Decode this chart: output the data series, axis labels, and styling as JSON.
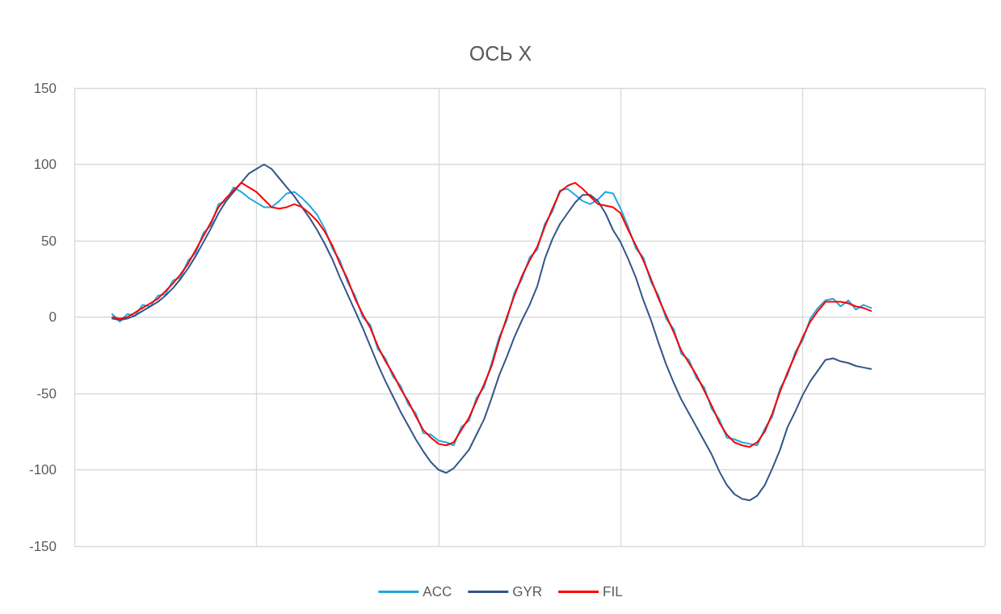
{
  "chart_data": {
    "type": "line",
    "title": "ОСЬ X",
    "categories": [
      null,
      null,
      null,
      null,
      null,
      null,
      null,
      null,
      null,
      null,
      null,
      null,
      null,
      null,
      null,
      null,
      null,
      null,
      null,
      null,
      null,
      null,
      null,
      null,
      null,
      null,
      null,
      null,
      null,
      null,
      null,
      null,
      null,
      null,
      null,
      null,
      null,
      null,
      null,
      null,
      null,
      null,
      null,
      null,
      null,
      null,
      null,
      null,
      null,
      null,
      null,
      null,
      null,
      null,
      null,
      null,
      null,
      null,
      null,
      null,
      null,
      null,
      null,
      null,
      null,
      null,
      null,
      null,
      null,
      null,
      null,
      null,
      null,
      null,
      null,
      null,
      null,
      null,
      null,
      null,
      null,
      null,
      null,
      null,
      null,
      null,
      null,
      null,
      null,
      null,
      null,
      null,
      null,
      null,
      null,
      null,
      null,
      null,
      null,
      null,
      null,
      null,
      null,
      null,
      null,
      null,
      null,
      null,
      null,
      null,
      null,
      null,
      null,
      null,
      null,
      null,
      null,
      null,
      null,
      null,
      null
    ],
    "series": [
      {
        "name": "ACC",
        "color": "#1fa8e0",
        "values": [
          null,
          null,
          null,
          null,
          null,
          2,
          -3,
          2,
          1,
          8,
          7,
          14,
          15,
          24,
          26,
          37,
          42,
          55,
          60,
          74,
          76,
          85,
          82,
          78,
          75,
          72,
          72,
          76,
          81,
          82,
          78,
          73,
          67,
          58,
          45,
          37,
          23,
          14,
          0,
          -5,
          -21,
          -27,
          -39,
          -45,
          -57,
          -63,
          -76,
          -77,
          -81,
          -82,
          -84,
          -72,
          -68,
          -53,
          -46,
          -30,
          -13,
          -2,
          16,
          25,
          39,
          44,
          61,
          69,
          83,
          84,
          80,
          76,
          74,
          77,
          82,
          81,
          71,
          59,
          45,
          39,
          23,
          14,
          -1,
          -8,
          -24,
          -28,
          -40,
          -46,
          -60,
          -67,
          -79,
          -80,
          -82,
          -83,
          -84,
          -73,
          -65,
          -47,
          -38,
          -23,
          -15,
          -1,
          6,
          11,
          12,
          7,
          11,
          5,
          8,
          6,
          null,
          null,
          null,
          null,
          null,
          null,
          null,
          null,
          null,
          null,
          null,
          null,
          null,
          null,
          null
        ]
      },
      {
        "name": "GYR",
        "color": "#34558b",
        "values": [
          null,
          null,
          null,
          null,
          null,
          -1,
          -2,
          -1,
          1,
          4,
          7,
          10,
          14,
          19,
          25,
          32,
          40,
          49,
          58,
          68,
          76,
          82,
          88,
          94,
          97,
          100,
          97,
          91,
          85,
          79,
          72,
          65,
          57,
          48,
          38,
          26,
          15,
          4,
          -7,
          -19,
          -31,
          -42,
          -52,
          -62,
          -71,
          -80,
          -88,
          -95,
          -100,
          -102,
          -99,
          -93,
          -87,
          -77,
          -67,
          -53,
          -38,
          -26,
          -13,
          -2,
          8,
          20,
          38,
          51,
          61,
          68,
          75,
          80,
          80,
          76,
          68,
          57,
          49,
          38,
          26,
          11,
          -2,
          -17,
          -31,
          -43,
          -54,
          -63,
          -72,
          -81,
          -90,
          -101,
          -110,
          -116,
          -119,
          -120,
          -117,
          -110,
          -99,
          -87,
          -72,
          -62,
          -51,
          -42,
          -35,
          -28,
          -27,
          -29,
          -30,
          -32,
          -33,
          -34,
          null,
          null,
          null,
          null,
          null,
          null,
          null,
          null,
          null,
          null,
          null,
          null,
          null,
          null,
          null
        ]
      },
      {
        "name": "FIL",
        "color": "#ff0000",
        "values": [
          null,
          null,
          null,
          null,
          null,
          0,
          -1,
          0,
          3,
          6,
          9,
          12,
          17,
          22,
          28,
          35,
          44,
          53,
          62,
          72,
          78,
          83,
          88,
          85,
          82,
          77,
          72,
          71,
          72,
          74,
          72,
          68,
          63,
          56,
          47,
          35,
          25,
          12,
          2,
          -7,
          -19,
          -29,
          -37,
          -47,
          -55,
          -65,
          -74,
          -79,
          -83,
          -84,
          -82,
          -74,
          -66,
          -55,
          -44,
          -32,
          -15,
          0,
          14,
          27,
          37,
          46,
          59,
          71,
          82,
          86,
          88,
          84,
          79,
          74,
          73,
          72,
          68,
          57,
          47,
          37,
          25,
          12,
          1,
          -10,
          -22,
          -30,
          -38,
          -48,
          -58,
          -69,
          -77,
          -82,
          -84,
          -85,
          -82,
          -75,
          -63,
          -49,
          -36,
          -25,
          -13,
          -3,
          4,
          10,
          10,
          10,
          9,
          7,
          6,
          4,
          null,
          null,
          null,
          null,
          null,
          null,
          null,
          null,
          null,
          null,
          null,
          null,
          null,
          null,
          null
        ]
      }
    ],
    "ylim": [
      -150,
      150
    ],
    "yticks": [
      -150,
      -100,
      -50,
      0,
      50,
      100,
      150
    ],
    "grid": true,
    "legend": "bottom",
    "marker": "none",
    "line_style": "solid"
  }
}
